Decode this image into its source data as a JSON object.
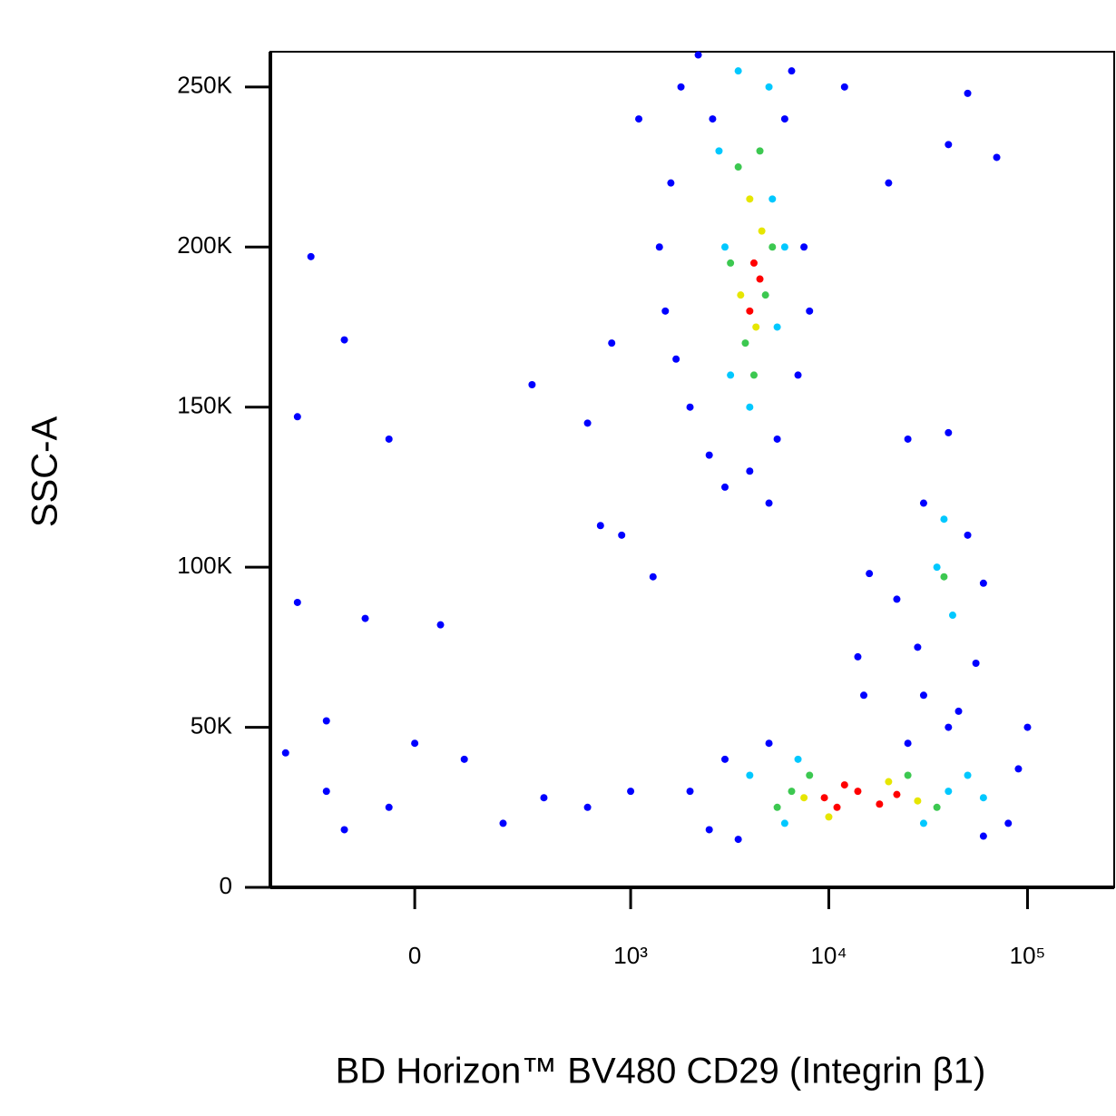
{
  "chart_data": {
    "type": "scatter",
    "x_label": "BD Horizon™ BV480 CD29 (Integrin β1)",
    "y_label": "SSC-A",
    "xscale": "biexponential",
    "xlim": [
      -424,
      273000
    ],
    "ylim": [
      0,
      261000
    ],
    "xticks": [
      0,
      {
        "value": 1000,
        "label": "10³"
      },
      {
        "value": 10000,
        "label": "10⁴"
      },
      {
        "value": 100000,
        "label": "10⁵"
      }
    ],
    "yticks": [
      {
        "value": 0,
        "label": "0"
      },
      {
        "value": 50000,
        "label": "50K"
      },
      {
        "value": 100000,
        "label": "100K"
      },
      {
        "value": 150000,
        "label": "150K"
      },
      {
        "value": 200000,
        "label": "200K"
      },
      {
        "value": 250000,
        "label": "250K"
      }
    ],
    "series": [
      {
        "color": "#0000ff",
        "x": [
          1500,
          1600,
          1800,
          2000,
          2200,
          6500,
          7500,
          7000,
          5500,
          2500,
          3000,
          4000,
          1400,
          1700,
          6000,
          8000,
          2600,
          5000,
          -250,
          -150,
          -300,
          -50,
          300,
          800,
          600,
          1100,
          12000,
          20000,
          40000,
          70000,
          50000,
          900,
          700,
          1300,
          -300,
          -100,
          50,
          -200,
          0,
          -350,
          100,
          -200,
          -50,
          200,
          -150,
          350,
          600,
          1000,
          15000,
          14000,
          16000,
          2000,
          2500,
          3000,
          5000,
          90000,
          80000,
          60000,
          100000,
          3500,
          25000,
          40000,
          25000,
          40000,
          30000,
          50000,
          22000,
          55000,
          30000,
          45000,
          28000,
          60000
        ],
        "y": [
          180000,
          220000,
          250000,
          150000,
          260000,
          255000,
          200000,
          160000,
          140000,
          135000,
          125000,
          130000,
          200000,
          165000,
          240000,
          180000,
          240000,
          120000,
          197000,
          171000,
          147000,
          140000,
          157000,
          170000,
          145000,
          240000,
          250000,
          220000,
          232000,
          228000,
          248000,
          110000,
          113000,
          97000,
          89000,
          84000,
          82000,
          52000,
          45000,
          42000,
          40000,
          30000,
          25000,
          20000,
          18000,
          28000,
          25000,
          30000,
          60000,
          72000,
          98000,
          30000,
          18000,
          40000,
          45000,
          37000,
          20000,
          16000,
          50000,
          15000,
          45000,
          50000,
          140000,
          142000,
          120000,
          110000,
          90000,
          70000,
          60000,
          55000,
          75000,
          95000
        ]
      },
      {
        "color": "#00c8ff",
        "x": [
          2800,
          5200,
          3200,
          5500,
          3000,
          6000,
          4000,
          3500,
          5000,
          4000,
          6000,
          40000,
          50000,
          7000,
          30000,
          60000,
          35000,
          42000,
          38000
        ],
        "y": [
          230000,
          215000,
          160000,
          175000,
          200000,
          200000,
          150000,
          255000,
          250000,
          35000,
          20000,
          30000,
          35000,
          40000,
          20000,
          28000,
          100000,
          85000,
          115000
        ]
      },
      {
        "color": "#3cc850",
        "x": [
          3500,
          4500,
          3800,
          4800,
          3200,
          5200,
          4200,
          5500,
          8000,
          35000,
          25000,
          6500,
          38000
        ],
        "y": [
          225000,
          230000,
          170000,
          185000,
          195000,
          200000,
          160000,
          25000,
          35000,
          25000,
          35000,
          30000,
          97000
        ]
      },
      {
        "color": "#e6e600",
        "x": [
          4000,
          4600,
          3600,
          4300,
          7500,
          20000,
          10000,
          28000
        ],
        "y": [
          215000,
          205000,
          185000,
          175000,
          28000,
          33000,
          22000,
          27000
        ]
      },
      {
        "color": "#ff0000",
        "x": [
          4200,
          4000,
          4500,
          9500,
          12000,
          14000,
          18000,
          22000,
          11000
        ],
        "y": [
          195000,
          180000,
          190000,
          28000,
          32000,
          30000,
          26000,
          29000,
          25000
        ]
      }
    ]
  }
}
